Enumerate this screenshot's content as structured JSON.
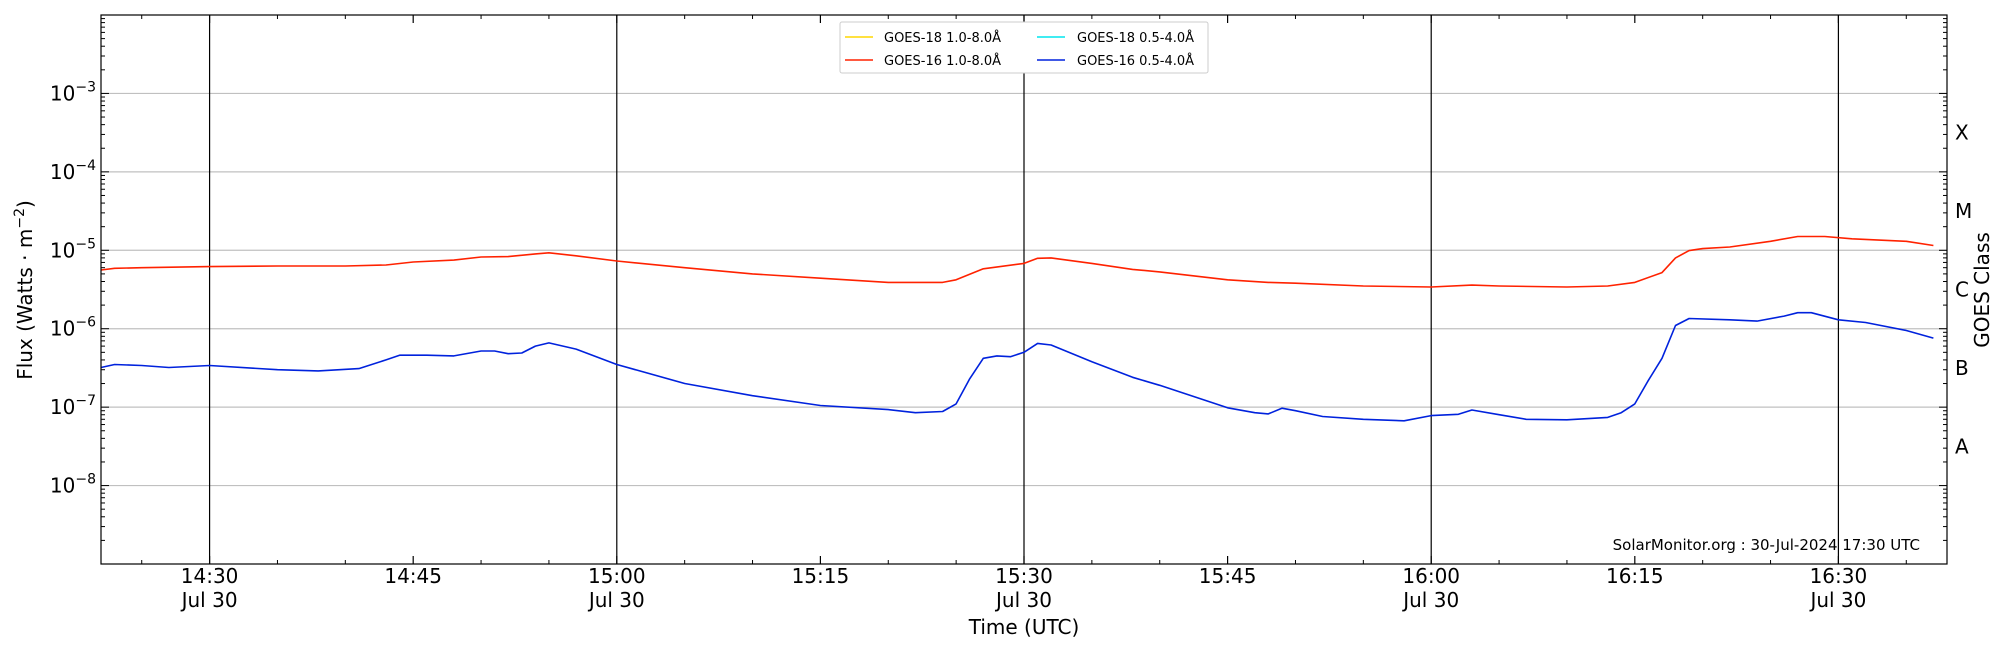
{
  "chart_data": {
    "type": "line",
    "title": "",
    "xlabel": "Time (UTC)",
    "ylabel_main": "Flux (Watts · m",
    "ylabel_sup": "−2",
    "ylabel_close": ")",
    "right_label": "GOES Class",
    "credit": "SolarMonitor.org : 30-Jul-2024 17:30 UTC",
    "y_scale": "log",
    "xlim": [
      "14:22",
      "16:38"
    ],
    "ylim": [
      1e-09,
      0.01
    ],
    "x_ticks": [
      {
        "t": "14:30",
        "line1": "14:30",
        "line2": "Jul 30"
      },
      {
        "t": "14:45",
        "line1": "14:45",
        "line2": ""
      },
      {
        "t": "15:00",
        "line1": "15:00",
        "line2": "Jul 30"
      },
      {
        "t": "15:15",
        "line1": "15:15",
        "line2": ""
      },
      {
        "t": "15:30",
        "line1": "15:30",
        "line2": "Jul 30"
      },
      {
        "t": "15:45",
        "line1": "15:45",
        "line2": ""
      },
      {
        "t": "16:00",
        "line1": "16:00",
        "line2": "Jul 30"
      },
      {
        "t": "16:15",
        "line1": "16:15",
        "line2": ""
      },
      {
        "t": "16:30",
        "line1": "16:30",
        "line2": "Jul 30"
      }
    ],
    "vertical_lines": [
      "14:30",
      "15:00",
      "15:30",
      "16:00",
      "16:30"
    ],
    "y_ticks": [
      {
        "exp": -3,
        "base": "10",
        "sup": "−3"
      },
      {
        "exp": -4,
        "base": "10",
        "sup": "−4"
      },
      {
        "exp": -5,
        "base": "10",
        "sup": "−5"
      },
      {
        "exp": -6,
        "base": "10",
        "sup": "−6"
      },
      {
        "exp": -7,
        "base": "10",
        "sup": "−7"
      },
      {
        "exp": -8,
        "base": "10",
        "sup": "−8"
      }
    ],
    "grid_y": [
      -8,
      -7,
      -6,
      -5,
      -4,
      -3
    ],
    "classes": [
      {
        "label": "X",
        "exp": -3.5
      },
      {
        "label": "M",
        "exp": -4.5
      },
      {
        "label": "C",
        "exp": -5.5
      },
      {
        "label": "B",
        "exp": -6.5
      },
      {
        "label": "A",
        "exp": -7.5
      }
    ],
    "legend": {
      "placement": "top-center",
      "entries": [
        {
          "name": "GOES-18 1.0-8.0Å",
          "color": "#ffd700"
        },
        {
          "name": "GOES-18 0.5-4.0Å",
          "color": "#00e5ee"
        },
        {
          "name": "GOES-16 1.0-8.0Å",
          "color": "#ff2200"
        },
        {
          "name": "GOES-16 0.5-4.0Å",
          "color": "#0022dd"
        }
      ]
    },
    "series": [
      {
        "name": "GOES-16 1.0-8.0Å",
        "color": "#ff2200",
        "points": [
          [
            "14:22",
            5.6e-06
          ],
          [
            "14:23",
            5.9e-06
          ],
          [
            "14:25",
            6e-06
          ],
          [
            "14:30",
            6.2e-06
          ],
          [
            "14:35",
            6.3e-06
          ],
          [
            "14:40",
            6.3e-06
          ],
          [
            "14:43",
            6.5e-06
          ],
          [
            "14:45",
            7.1e-06
          ],
          [
            "14:48",
            7.5e-06
          ],
          [
            "14:50",
            8.2e-06
          ],
          [
            "14:52",
            8.3e-06
          ],
          [
            "14:54",
            9e-06
          ],
          [
            "14:55",
            9.3e-06
          ],
          [
            "14:57",
            8.5e-06
          ],
          [
            "15:00",
            7.3e-06
          ],
          [
            "15:05",
            6e-06
          ],
          [
            "15:10",
            5e-06
          ],
          [
            "15:15",
            4.4e-06
          ],
          [
            "15:20",
            3.9e-06
          ],
          [
            "15:24",
            3.9e-06
          ],
          [
            "15:25",
            4.2e-06
          ],
          [
            "15:27",
            5.8e-06
          ],
          [
            "15:30",
            6.8e-06
          ],
          [
            "15:31",
            7.9e-06
          ],
          [
            "15:32",
            8e-06
          ],
          [
            "15:35",
            6.8e-06
          ],
          [
            "15:38",
            5.7e-06
          ],
          [
            "15:40",
            5.3e-06
          ],
          [
            "15:45",
            4.2e-06
          ],
          [
            "15:48",
            3.9e-06
          ],
          [
            "15:50",
            3.8e-06
          ],
          [
            "15:55",
            3.5e-06
          ],
          [
            "16:00",
            3.4e-06
          ],
          [
            "16:03",
            3.6e-06
          ],
          [
            "16:05",
            3.5e-06
          ],
          [
            "16:10",
            3.4e-06
          ],
          [
            "16:13",
            3.5e-06
          ],
          [
            "16:15",
            3.9e-06
          ],
          [
            "16:17",
            5.2e-06
          ],
          [
            "16:18",
            8e-06
          ],
          [
            "16:19",
            9.9e-06
          ],
          [
            "16:20",
            1.05e-05
          ],
          [
            "16:22",
            1.1e-05
          ],
          [
            "16:25",
            1.3e-05
          ],
          [
            "16:27",
            1.5e-05
          ],
          [
            "16:29",
            1.5e-05
          ],
          [
            "16:31",
            1.4e-05
          ],
          [
            "16:35",
            1.3e-05
          ],
          [
            "16:37",
            1.15e-05
          ]
        ]
      },
      {
        "name": "GOES-16 0.5-4.0Å",
        "color": "#0022dd",
        "points": [
          [
            "14:22",
            3.2e-07
          ],
          [
            "14:23",
            3.5e-07
          ],
          [
            "14:25",
            3.4e-07
          ],
          [
            "14:27",
            3.2e-07
          ],
          [
            "14:30",
            3.4e-07
          ],
          [
            "14:35",
            3e-07
          ],
          [
            "14:38",
            2.9e-07
          ],
          [
            "14:41",
            3.1e-07
          ],
          [
            "14:43",
            4e-07
          ],
          [
            "14:44",
            4.6e-07
          ],
          [
            "14:46",
            4.6e-07
          ],
          [
            "14:48",
            4.5e-07
          ],
          [
            "14:50",
            5.2e-07
          ],
          [
            "14:51",
            5.2e-07
          ],
          [
            "14:52",
            4.8e-07
          ],
          [
            "14:53",
            4.9e-07
          ],
          [
            "14:54",
            6e-07
          ],
          [
            "14:55",
            6.6e-07
          ],
          [
            "14:57",
            5.5e-07
          ],
          [
            "15:00",
            3.5e-07
          ],
          [
            "15:05",
            2e-07
          ],
          [
            "15:10",
            1.4e-07
          ],
          [
            "15:15",
            1.05e-07
          ],
          [
            "15:20",
            9.3e-08
          ],
          [
            "15:22",
            8.5e-08
          ],
          [
            "15:24",
            8.8e-08
          ],
          [
            "15:25",
            1.1e-07
          ],
          [
            "15:26",
            2.3e-07
          ],
          [
            "15:27",
            4.2e-07
          ],
          [
            "15:28",
            4.5e-07
          ],
          [
            "15:29",
            4.4e-07
          ],
          [
            "15:30",
            5e-07
          ],
          [
            "15:31",
            6.5e-07
          ],
          [
            "15:32",
            6.2e-07
          ],
          [
            "15:35",
            3.8e-07
          ],
          [
            "15:38",
            2.4e-07
          ],
          [
            "15:40",
            1.9e-07
          ],
          [
            "15:45",
            9.8e-08
          ],
          [
            "15:47",
            8.5e-08
          ],
          [
            "15:48",
            8.2e-08
          ],
          [
            "15:49",
            9.7e-08
          ],
          [
            "15:50",
            9e-08
          ],
          [
            "15:52",
            7.6e-08
          ],
          [
            "15:55",
            7e-08
          ],
          [
            "15:58",
            6.7e-08
          ],
          [
            "16:00",
            7.8e-08
          ],
          [
            "16:02",
            8.1e-08
          ],
          [
            "16:03",
            9.2e-08
          ],
          [
            "16:05",
            8e-08
          ],
          [
            "16:07",
            7e-08
          ],
          [
            "16:10",
            6.9e-08
          ],
          [
            "16:13",
            7.4e-08
          ],
          [
            "16:14",
            8.5e-08
          ],
          [
            "16:15",
            1.1e-07
          ],
          [
            "16:16",
            2.2e-07
          ],
          [
            "16:17",
            4.2e-07
          ],
          [
            "16:18",
            1.1e-06
          ],
          [
            "16:19",
            1.35e-06
          ],
          [
            "16:22",
            1.3e-06
          ],
          [
            "16:24",
            1.25e-06
          ],
          [
            "16:26",
            1.45e-06
          ],
          [
            "16:27",
            1.6e-06
          ],
          [
            "16:28",
            1.6e-06
          ],
          [
            "16:30",
            1.3e-06
          ],
          [
            "16:32",
            1.2e-06
          ],
          [
            "16:35",
            9.5e-07
          ],
          [
            "16:37",
            7.6e-07
          ]
        ]
      }
    ]
  }
}
